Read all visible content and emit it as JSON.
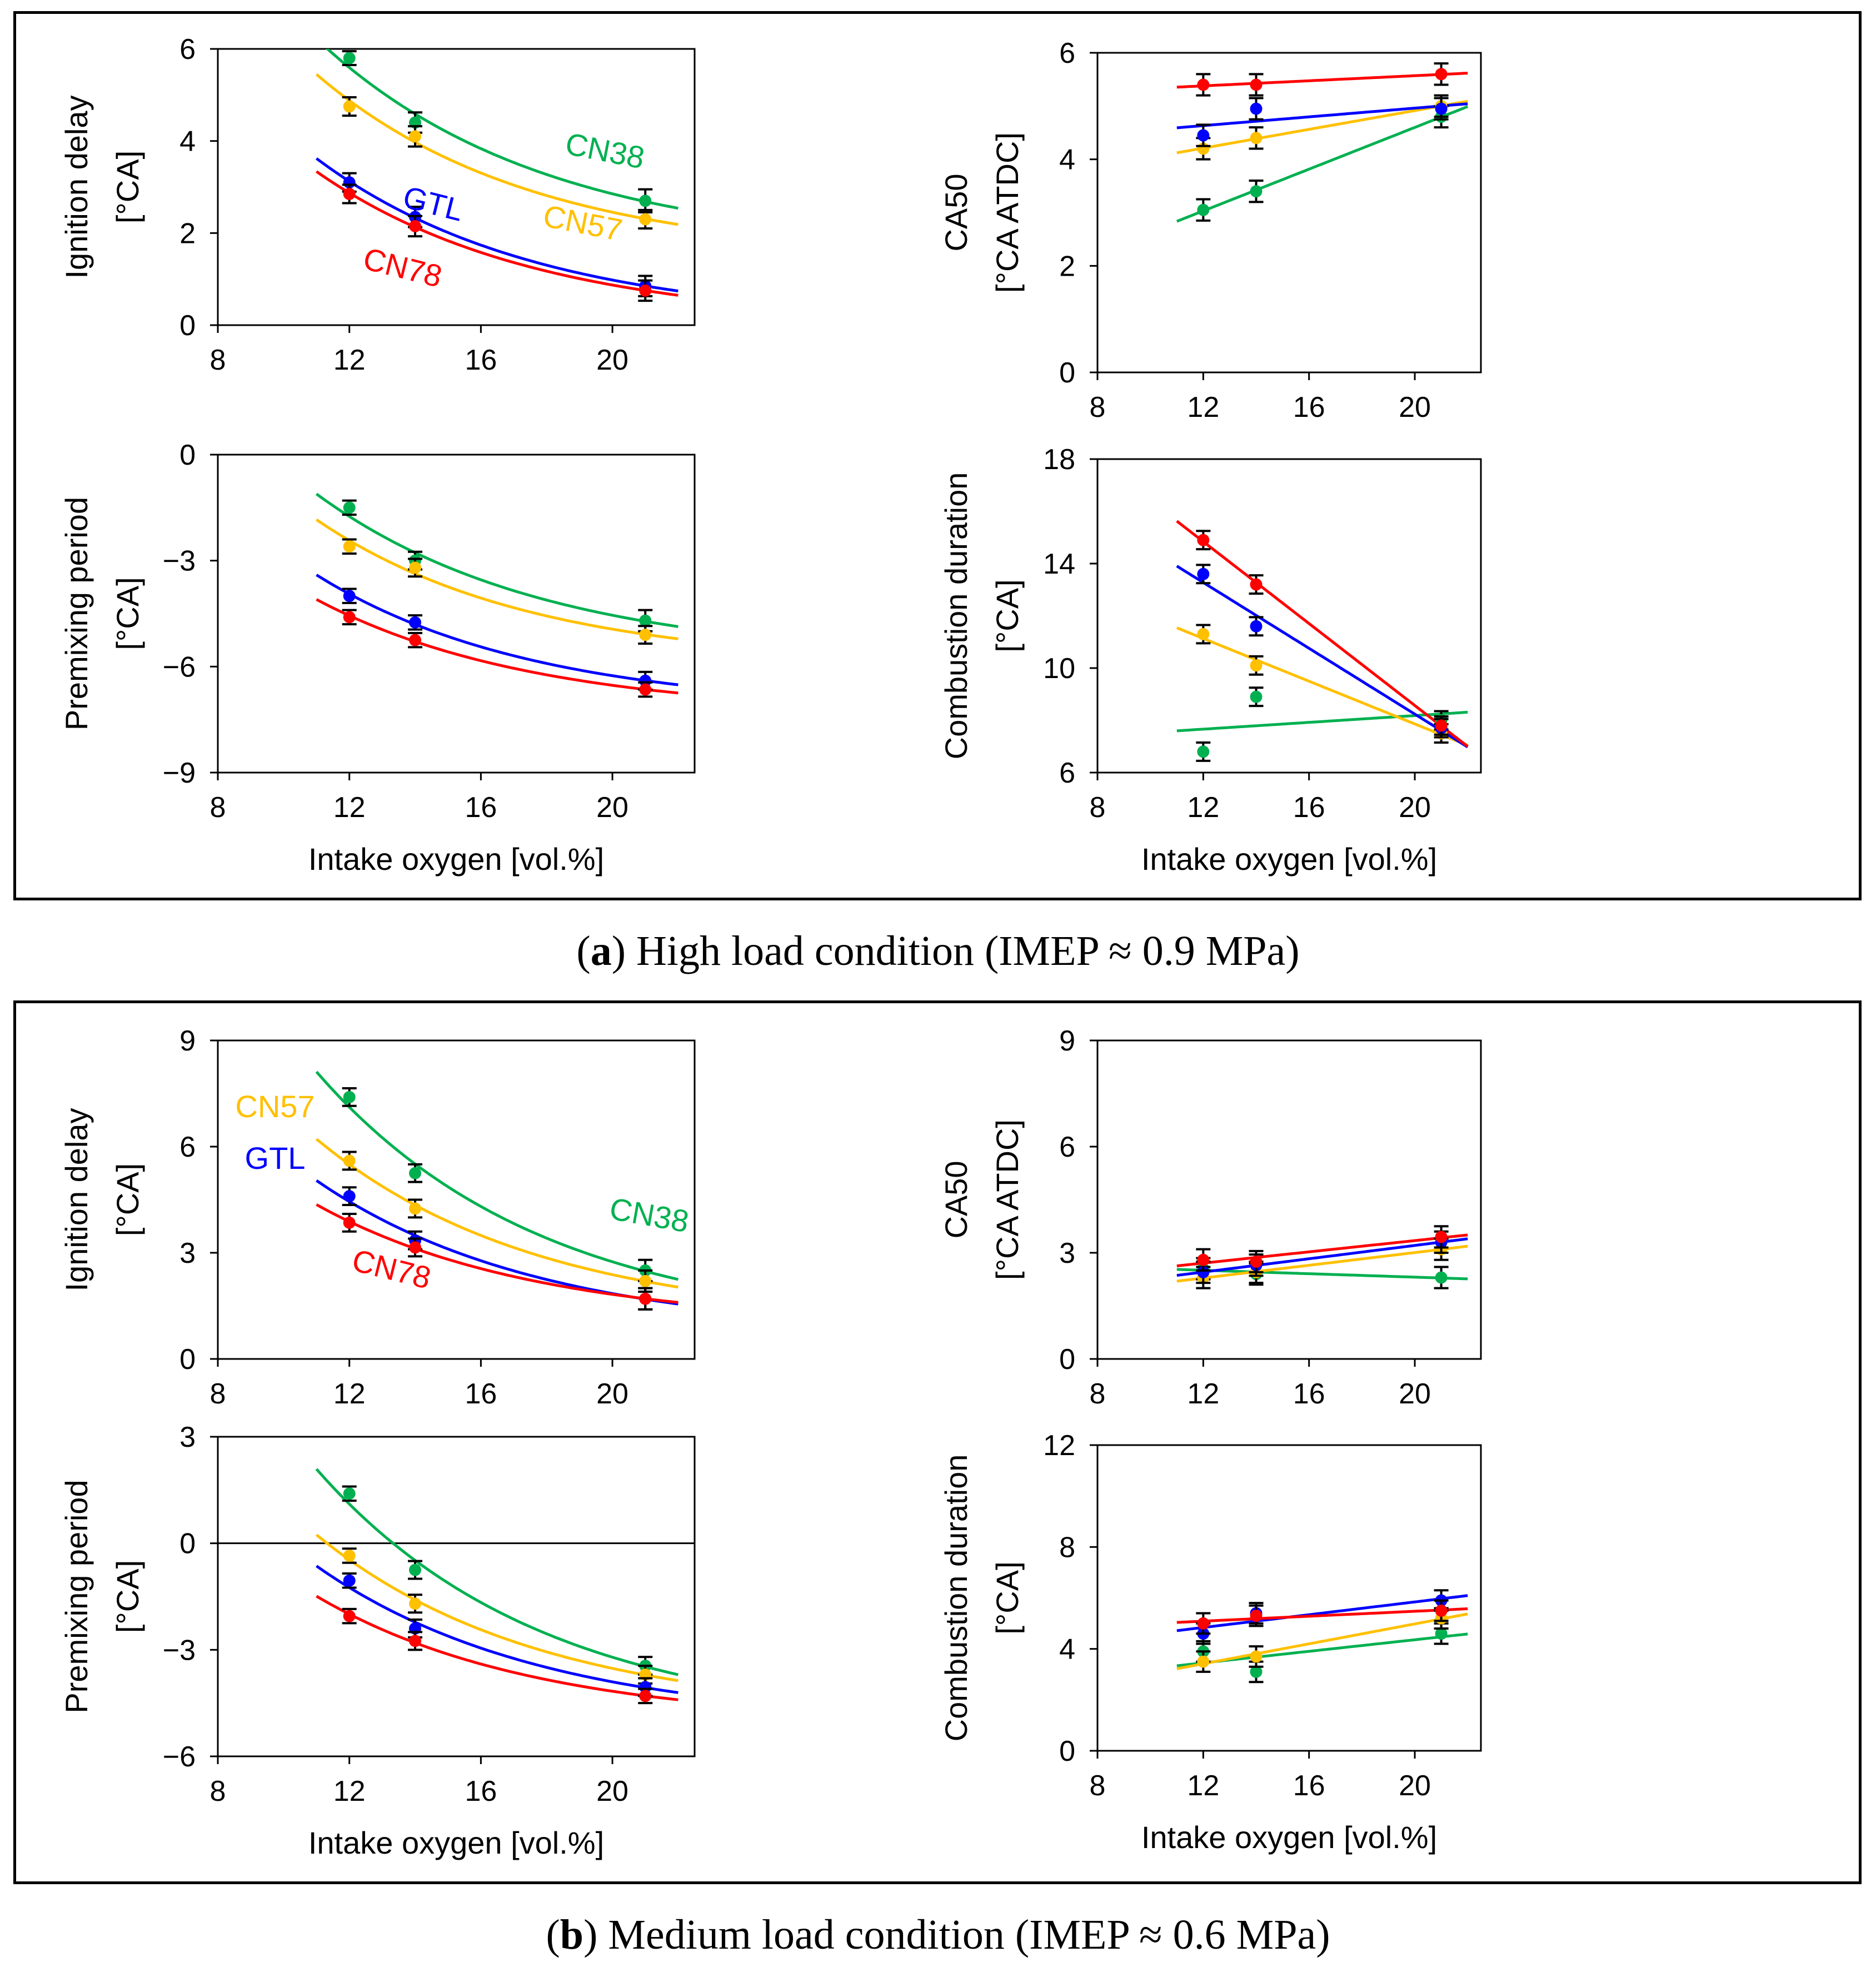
{
  "captions": {
    "a": {
      "letter": "a",
      "text": "High load condition (IMEP ≈ 0.9 MPa)"
    },
    "b": {
      "letter": "b",
      "text": "Medium load condition (IMEP ≈ 0.6 MPa)"
    }
  },
  "colors": {
    "CN78": "#ff0000",
    "GTL": "#0000ff",
    "CN57": "#ffc000",
    "CN38": "#00b050"
  },
  "chart_data": [
    {
      "id": "a-ignition",
      "type": "scatter",
      "ylabel": [
        "Ignition delay",
        "[°CA]"
      ],
      "xlabel": "",
      "xlim": [
        8,
        22.5
      ],
      "ylim": [
        0,
        6
      ],
      "xticks": [
        8,
        12,
        16,
        20
      ],
      "yticks": [
        0,
        2,
        4,
        6
      ],
      "fit": "exp",
      "series": [
        {
          "name": "CN38",
          "x": [
            12,
            14,
            21
          ],
          "y": [
            5.8,
            4.4,
            2.7
          ],
          "err": [
            0.15,
            0.22,
            0.25
          ],
          "label": "CN38"
        },
        {
          "name": "CN57",
          "x": [
            12,
            14,
            21
          ],
          "y": [
            4.75,
            4.1,
            2.3
          ],
          "err": [
            0.2,
            0.22,
            0.2
          ],
          "label": "CN57"
        },
        {
          "name": "GTL",
          "x": [
            12,
            14,
            21
          ],
          "y": [
            3.1,
            2.35,
            0.85
          ],
          "err": [
            0.2,
            0.22,
            0.22
          ],
          "label": "GTL"
        },
        {
          "name": "CN78",
          "x": [
            12,
            14,
            21
          ],
          "y": [
            2.85,
            2.15,
            0.75
          ],
          "err": [
            0.2,
            0.22,
            0.22
          ],
          "label": "CN78"
        }
      ]
    },
    {
      "id": "a-ca50",
      "type": "scatter",
      "ylabel": [
        "CA50",
        "[°CA ATDC]"
      ],
      "xlabel": "",
      "xlim": [
        8,
        22.5
      ],
      "ylim": [
        0,
        6
      ],
      "xticks": [
        8,
        12,
        16,
        20
      ],
      "yticks": [
        0,
        2,
        4,
        6
      ],
      "fit": "linear",
      "series": [
        {
          "name": "CN78",
          "x": [
            12,
            14,
            21
          ],
          "y": [
            5.4,
            5.4,
            5.6
          ],
          "err": [
            0.2,
            0.2,
            0.2
          ]
        },
        {
          "name": "GTL",
          "x": [
            12,
            14,
            21
          ],
          "y": [
            4.45,
            4.95,
            4.95
          ],
          "err": [
            0.2,
            0.2,
            0.2
          ]
        },
        {
          "name": "CN57",
          "x": [
            12,
            14,
            21
          ],
          "y": [
            4.2,
            4.4,
            5.0
          ],
          "err": [
            0.2,
            0.2,
            0.2
          ]
        },
        {
          "name": "CN38",
          "x": [
            12,
            14,
            21
          ],
          "y": [
            3.05,
            3.4,
            4.8
          ],
          "err": [
            0.2,
            0.2,
            0.2
          ]
        }
      ]
    },
    {
      "id": "a-premix",
      "type": "scatter",
      "ylabel": [
        "Premixing period",
        "[°CA]"
      ],
      "xlabel": "Intake oxygen  [vol.%]",
      "xlim": [
        8,
        22.5
      ],
      "ylim": [
        -9,
        0
      ],
      "xticks": [
        8,
        12,
        16,
        20
      ],
      "yticks": [
        -9,
        -6,
        -3,
        0
      ],
      "fit": "exp",
      "series": [
        {
          "name": "CN38",
          "x": [
            12,
            14,
            21
          ],
          "y": [
            -1.5,
            -3.0,
            -4.7
          ],
          "err": [
            0.2,
            0.25,
            0.3
          ]
        },
        {
          "name": "CN57",
          "x": [
            12,
            14,
            21
          ],
          "y": [
            -2.6,
            -3.2,
            -5.1
          ],
          "err": [
            0.2,
            0.25,
            0.25
          ]
        },
        {
          "name": "GTL",
          "x": [
            12,
            14,
            21
          ],
          "y": [
            -4.0,
            -4.75,
            -6.4
          ],
          "err": [
            0.2,
            0.2,
            0.25
          ]
        },
        {
          "name": "CN78",
          "x": [
            12,
            14,
            21
          ],
          "y": [
            -4.6,
            -5.25,
            -6.65
          ],
          "err": [
            0.2,
            0.2,
            0.2
          ]
        }
      ]
    },
    {
      "id": "a-duration",
      "type": "scatter",
      "ylabel": [
        "Combustion duration",
        "[°CA]"
      ],
      "xlabel": "Intake oxygen  [vol.%]",
      "xlim": [
        8,
        22.5
      ],
      "ylim": [
        6,
        18
      ],
      "xticks": [
        8,
        12,
        16,
        20
      ],
      "yticks": [
        6,
        10,
        14,
        18
      ],
      "fit": "linear",
      "series": [
        {
          "name": "CN78",
          "x": [
            12,
            14,
            21
          ],
          "y": [
            14.9,
            13.2,
            7.8
          ],
          "err": [
            0.35,
            0.35,
            0.35
          ]
        },
        {
          "name": "GTL",
          "x": [
            12,
            14,
            21
          ],
          "y": [
            13.6,
            11.6,
            7.7
          ],
          "err": [
            0.35,
            0.35,
            0.35
          ]
        },
        {
          "name": "CN57",
          "x": [
            12,
            14,
            21
          ],
          "y": [
            11.3,
            10.1,
            7.5
          ],
          "err": [
            0.35,
            0.35,
            0.35
          ]
        },
        {
          "name": "CN38",
          "x": [
            12,
            14,
            21
          ],
          "y": [
            6.8,
            8.9,
            8.0
          ],
          "err": [
            0.35,
            0.35,
            0.35
          ]
        }
      ]
    },
    {
      "id": "b-ignition",
      "type": "scatter",
      "ylabel": [
        "Ignition delay",
        "[°CA]"
      ],
      "xlabel": "",
      "xlim": [
        8,
        22.5
      ],
      "ylim": [
        0,
        9
      ],
      "xticks": [
        8,
        12,
        16,
        20
      ],
      "yticks": [
        0,
        3,
        6,
        9
      ],
      "fit": "exp",
      "series": [
        {
          "name": "CN38",
          "x": [
            12,
            14,
            21
          ],
          "y": [
            7.4,
            5.25,
            2.5
          ],
          "err": [
            0.25,
            0.25,
            0.3
          ],
          "label": "CN38"
        },
        {
          "name": "CN57",
          "x": [
            12,
            14,
            21
          ],
          "y": [
            5.6,
            4.25,
            2.2
          ],
          "err": [
            0.25,
            0.25,
            0.3
          ],
          "label": "CN57"
        },
        {
          "name": "GTL",
          "x": [
            12,
            14,
            21
          ],
          "y": [
            4.6,
            3.35,
            1.7
          ],
          "err": [
            0.25,
            0.25,
            0.3
          ],
          "label": "GTL"
        },
        {
          "name": "CN78",
          "x": [
            12,
            14,
            21
          ],
          "y": [
            3.85,
            3.15,
            1.7
          ],
          "err": [
            0.25,
            0.25,
            0.3
          ],
          "label": "CN78"
        }
      ]
    },
    {
      "id": "b-ca50",
      "type": "scatter",
      "ylabel": [
        "CA50",
        "[°CA ATDC]"
      ],
      "xlabel": "",
      "xlim": [
        8,
        22.5
      ],
      "ylim": [
        0,
        9
      ],
      "xticks": [
        8,
        12,
        16,
        20
      ],
      "yticks": [
        0,
        3,
        6,
        9
      ],
      "fit": "linear",
      "series": [
        {
          "name": "CN78",
          "x": [
            12,
            14,
            21
          ],
          "y": [
            2.8,
            2.75,
            3.45
          ],
          "err": [
            0.3,
            0.3,
            0.3
          ]
        },
        {
          "name": "GTL",
          "x": [
            12,
            14,
            21
          ],
          "y": [
            2.45,
            2.65,
            3.3
          ],
          "err": [
            0.3,
            0.3,
            0.3
          ]
        },
        {
          "name": "CN57",
          "x": [
            12,
            14,
            21
          ],
          "y": [
            2.3,
            2.45,
            3.1
          ],
          "err": [
            0.3,
            0.3,
            0.3
          ]
        },
        {
          "name": "CN38",
          "x": [
            12,
            14,
            21
          ],
          "y": [
            2.55,
            2.4,
            2.3
          ],
          "err": [
            0.3,
            0.3,
            0.3
          ]
        }
      ]
    },
    {
      "id": "b-premix",
      "type": "scatter",
      "ylabel": [
        "Premixing period",
        "[°CA]"
      ],
      "xlabel": "Intake oxygen  [vol.%]",
      "xlim": [
        8,
        22.5
      ],
      "ylim": [
        -6,
        3
      ],
      "xticks": [
        8,
        12,
        16,
        20
      ],
      "yticks": [
        -6,
        -3,
        0,
        3
      ],
      "zero_line": true,
      "fit": "exp",
      "series": [
        {
          "name": "CN38",
          "x": [
            12,
            14,
            21
          ],
          "y": [
            1.4,
            -0.75,
            -3.45
          ],
          "err": [
            0.2,
            0.25,
            0.25
          ]
        },
        {
          "name": "CN57",
          "x": [
            12,
            14,
            21
          ],
          "y": [
            -0.35,
            -1.7,
            -3.7
          ],
          "err": [
            0.2,
            0.25,
            0.25
          ]
        },
        {
          "name": "GTL",
          "x": [
            12,
            14,
            21
          ],
          "y": [
            -1.05,
            -2.4,
            -4.05
          ],
          "err": [
            0.2,
            0.25,
            0.25
          ]
        },
        {
          "name": "CN78",
          "x": [
            12,
            14,
            21
          ],
          "y": [
            -2.05,
            -2.75,
            -4.3
          ],
          "err": [
            0.2,
            0.25,
            0.2
          ]
        }
      ]
    },
    {
      "id": "b-duration",
      "type": "scatter",
      "ylabel": [
        "Combustion duration",
        "[°CA]"
      ],
      "xlabel": "Intake oxygen  [vol.%]",
      "xlim": [
        8,
        22.5
      ],
      "ylim": [
        0,
        12
      ],
      "xticks": [
        8,
        12,
        16,
        20
      ],
      "yticks": [
        0,
        4,
        8,
        12
      ],
      "fit": "linear",
      "series": [
        {
          "name": "CN78",
          "x": [
            12,
            14,
            21
          ],
          "y": [
            5.0,
            5.3,
            5.5
          ],
          "err": [
            0.4,
            0.4,
            0.4
          ]
        },
        {
          "name": "GTL",
          "x": [
            12,
            14,
            21
          ],
          "y": [
            4.6,
            5.4,
            5.9
          ],
          "err": [
            0.4,
            0.4,
            0.4
          ]
        },
        {
          "name": "CN57",
          "x": [
            12,
            14,
            21
          ],
          "y": [
            3.5,
            3.7,
            5.2
          ],
          "err": [
            0.4,
            0.4,
            0.4
          ]
        },
        {
          "name": "CN38",
          "x": [
            12,
            14,
            21
          ],
          "y": [
            3.9,
            3.1,
            4.6
          ],
          "err": [
            0.4,
            0.4,
            0.4
          ]
        }
      ]
    }
  ]
}
